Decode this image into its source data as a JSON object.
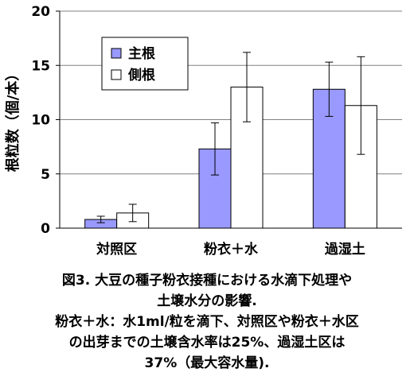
{
  "chart_data": {
    "type": "bar",
    "categories": [
      "対照区",
      "粉衣＋水",
      "過湿土"
    ],
    "series": [
      {
        "name": "主根",
        "values": [
          0.8,
          7.3,
          12.8
        ],
        "errors": [
          0.3,
          2.4,
          2.5
        ],
        "color": "#9999ff"
      },
      {
        "name": "側根",
        "values": [
          1.4,
          13.0,
          11.3
        ],
        "errors": [
          0.8,
          3.2,
          4.5
        ],
        "color": "#ffffff"
      }
    ],
    "ylabel": "根粒数（個/本）",
    "ylim": [
      0,
      20
    ],
    "yticks": [
      "0",
      "5",
      "10",
      "15",
      "20"
    ],
    "grid": true,
    "legend": "top-left"
  },
  "caption": {
    "line1": "図3. 大豆の種子粉衣接種における水滴下処理や",
    "line2": "土壌水分の影響.",
    "line3": "粉衣＋水：水1ml/粒を滴下、対照区や粉衣＋水区",
    "line4": "の出芽までの土壌含水率は25%、過湿土区は",
    "line5": "37%（最大容水量)."
  }
}
